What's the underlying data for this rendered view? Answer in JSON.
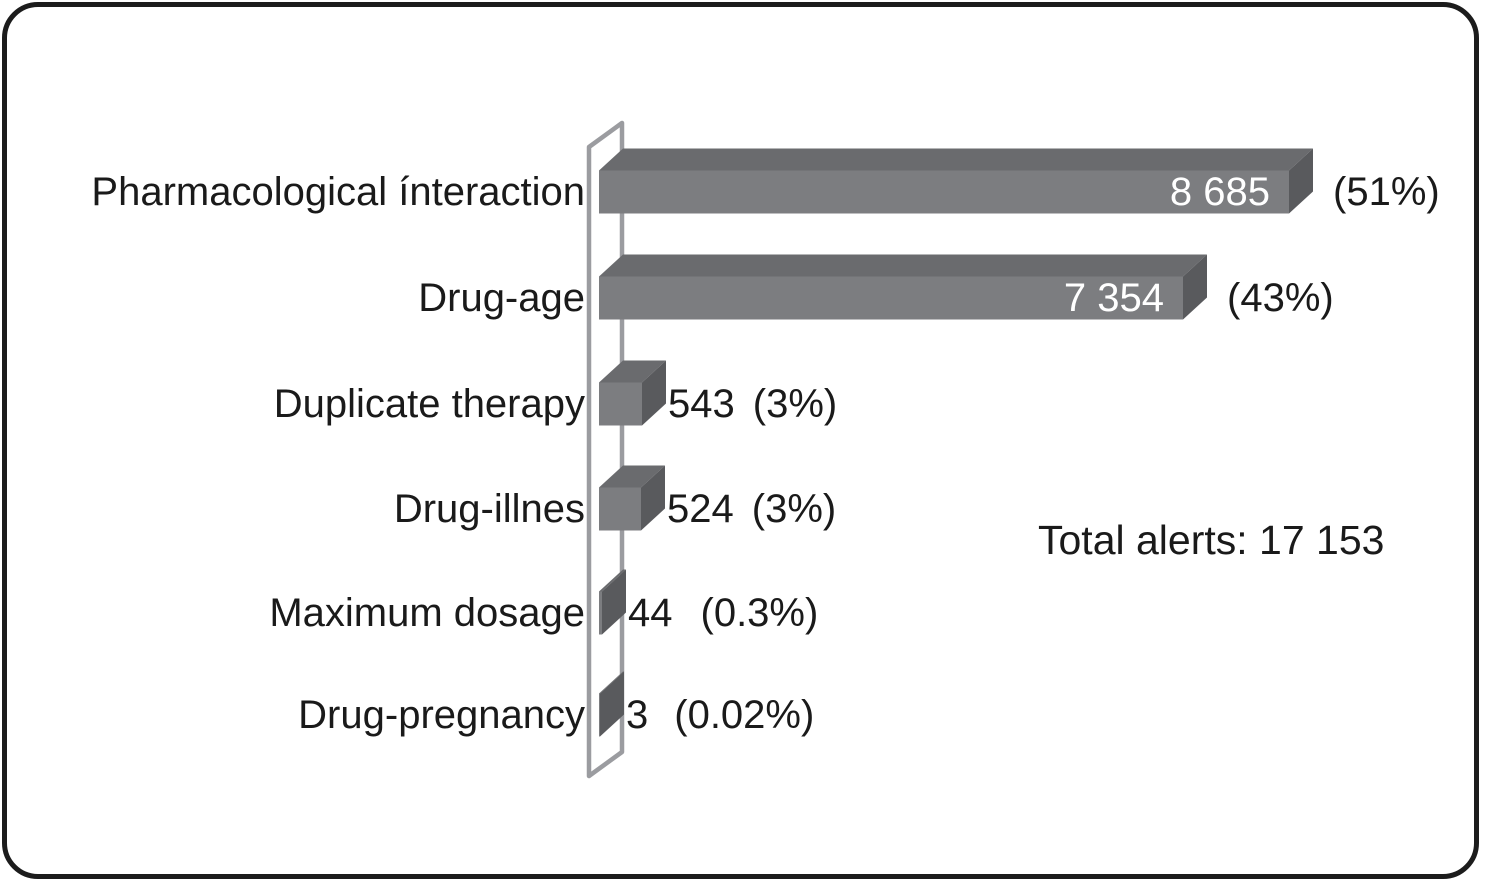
{
  "chart_data": {
    "type": "bar",
    "orientation": "horizontal",
    "style": "3d-extruded",
    "title": "",
    "categories": [
      "Pharmacological ínteraction",
      "Drug-age",
      "Duplicate therapy",
      "Drug-illnes",
      "Maximum dosage",
      "Drug-pregnancy"
    ],
    "values": [
      8685,
      7354,
      543,
      524,
      44,
      3
    ],
    "value_labels": [
      "8 685",
      "7 354",
      "543",
      "524",
      "44",
      "3"
    ],
    "percent_labels": [
      "(51%)",
      "(43%)",
      "(3%)",
      "(3%)",
      "(0.3%)",
      "(0.02%)"
    ],
    "annotation": "Total alerts: 17 153",
    "total": 17153,
    "xlim": [
      0,
      8685
    ],
    "grid": false,
    "legend": false,
    "axis_wall": "left-3d-plane",
    "colors": {
      "bar_front": "#7c7d80",
      "bar_top": "#6a6b6e",
      "bar_side": "#595a5d",
      "wall_stroke": "#9b9ca0",
      "text": "#1a1a1a",
      "bar_value_text": "#ffffff",
      "frame_border": "#1c1c1c",
      "background": "#ffffff"
    }
  }
}
